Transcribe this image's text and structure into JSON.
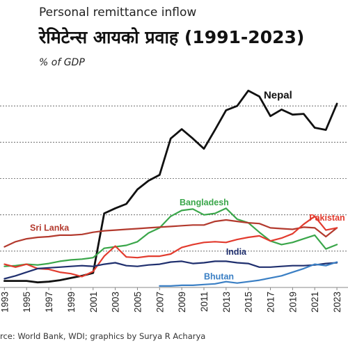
{
  "header": {
    "subtitle": "Personal remittance inflow",
    "title": "रेमिटेन्स आयको प्रवाह (1991-2023)",
    "unit": "% of GDP"
  },
  "footer": {
    "source": "rce: World Bank, WDI; graphics by Surya R Acharya"
  },
  "chart_data": {
    "type": "line",
    "title": "रेमिटेन्स आयको प्रवाह (1991-2023)",
    "subtitle": "Personal remittance inflow",
    "ylabel": "% of GDP",
    "xlabel": "",
    "xlim": [
      1992.6,
      2024
    ],
    "ylim": [
      0,
      30
    ],
    "x_ticks": [
      1993,
      1995,
      1997,
      1999,
      2001,
      2003,
      2005,
      2007,
      2009,
      2011,
      2013,
      2015,
      2017,
      2019,
      2021,
      2023
    ],
    "y_gridlines": [
      5,
      10,
      15,
      20,
      25
    ],
    "grid": "horizontal dashed",
    "legend": "inline labels",
    "series": [
      {
        "name": "Nepal",
        "color": "#111111",
        "x": [
          1993,
          1994,
          1995,
          1996,
          1997,
          1998,
          1999,
          2000,
          2001,
          2002,
          2003,
          2004,
          2005,
          2006,
          2007,
          2008,
          2009,
          2010,
          2011,
          2012,
          2013,
          2014,
          2015,
          2016,
          2017,
          2018,
          2019,
          2020,
          2021,
          2022,
          2023
        ],
        "y": [
          0.9,
          0.9,
          0.9,
          0.7,
          0.8,
          1.0,
          1.3,
          1.6,
          2.0,
          10.2,
          10.9,
          11.5,
          13.5,
          14.7,
          15.5,
          20.5,
          21.8,
          20.5,
          19.1,
          21.7,
          24.4,
          25.0,
          27.1,
          26.3,
          23.6,
          24.5,
          23.8,
          23.9,
          22.0,
          21.7,
          25.3
        ]
      },
      {
        "name": "Bangladesh",
        "color": "#3aa64a",
        "x": [
          1993,
          1994,
          1995,
          1996,
          1997,
          1998,
          1999,
          2000,
          2001,
          2002,
          2003,
          2004,
          2005,
          2006,
          2007,
          2008,
          2009,
          2010,
          2011,
          2012,
          2013,
          2014,
          2015,
          2016,
          2017,
          2018,
          2019,
          2020,
          2021,
          2022,
          2023
        ],
        "y": [
          2.9,
          3.0,
          3.2,
          3.1,
          3.3,
          3.6,
          3.8,
          3.9,
          4.1,
          5.4,
          5.6,
          5.8,
          6.3,
          7.5,
          8.2,
          9.8,
          10.6,
          10.8,
          10.0,
          10.2,
          10.9,
          9.4,
          8.9,
          7.6,
          6.4,
          5.9,
          6.2,
          6.7,
          7.2,
          5.3,
          5.9
        ]
      },
      {
        "name": "Sri Lanka",
        "color": "#b33a2e",
        "x": [
          1993,
          1994,
          1995,
          1996,
          1997,
          1998,
          1999,
          2000,
          2001,
          2002,
          2003,
          2004,
          2005,
          2006,
          2007,
          2008,
          2009,
          2010,
          2011,
          2012,
          2013,
          2014,
          2015,
          2016,
          2017,
          2018,
          2019,
          2020,
          2021,
          2022,
          2023
        ],
        "y": [
          5.6,
          6.3,
          6.7,
          6.9,
          7.0,
          7.2,
          7.2,
          7.3,
          7.6,
          7.8,
          7.9,
          8.0,
          8.1,
          8.2,
          8.3,
          8.4,
          8.5,
          8.6,
          8.6,
          9.1,
          9.3,
          9.1,
          8.9,
          8.8,
          8.2,
          8.1,
          8.0,
          8.3,
          8.2,
          7.0,
          8.2
        ]
      },
      {
        "name": "Pakistan",
        "color": "#e23b2e",
        "x": [
          1993,
          1994,
          1995,
          1996,
          1997,
          1998,
          1999,
          2000,
          2001,
          2002,
          2003,
          2004,
          2005,
          2006,
          2007,
          2008,
          2009,
          2010,
          2011,
          2012,
          2013,
          2014,
          2015,
          2016,
          2017,
          2018,
          2019,
          2020,
          2021,
          2022,
          2023
        ],
        "y": [
          3.2,
          2.8,
          3.2,
          2.6,
          2.5,
          2.1,
          1.9,
          1.5,
          2.2,
          4.3,
          5.7,
          4.2,
          4.1,
          4.3,
          4.3,
          4.6,
          5.5,
          5.9,
          6.2,
          6.3,
          6.2,
          6.6,
          6.9,
          7.1,
          6.4,
          6.8,
          7.4,
          8.7,
          9.8,
          7.9,
          8.2
        ]
      },
      {
        "name": "India",
        "color": "#1f2f6e",
        "x": [
          1993,
          1994,
          1995,
          1996,
          1997,
          1998,
          1999,
          2000,
          2001,
          2002,
          2003,
          2004,
          2005,
          2006,
          2007,
          2008,
          2009,
          2010,
          2011,
          2012,
          2013,
          2014,
          2015,
          2016,
          2017,
          2018,
          2019,
          2020,
          2021,
          2022,
          2023
        ],
        "y": [
          1.2,
          1.6,
          2.1,
          2.6,
          2.7,
          2.8,
          2.9,
          3.0,
          2.9,
          3.2,
          3.4,
          3.0,
          2.9,
          3.1,
          3.2,
          3.5,
          3.6,
          3.3,
          3.4,
          3.6,
          3.6,
          3.4,
          3.3,
          2.8,
          2.8,
          2.9,
          3.0,
          3.0,
          3.1,
          3.3,
          3.4
        ]
      },
      {
        "name": "Bhutan",
        "color": "#3a7fc4",
        "x": [
          2007,
          2008,
          2009,
          2010,
          2011,
          2012,
          2013,
          2014,
          2015,
          2016,
          2017,
          2018,
          2019,
          2020,
          2021,
          2022,
          2023
        ],
        "y": [
          0.2,
          0.2,
          0.3,
          0.3,
          0.4,
          0.5,
          0.8,
          0.6,
          0.8,
          1.0,
          1.3,
          1.6,
          2.1,
          2.6,
          3.2,
          3.0,
          3.5
        ]
      }
    ]
  }
}
